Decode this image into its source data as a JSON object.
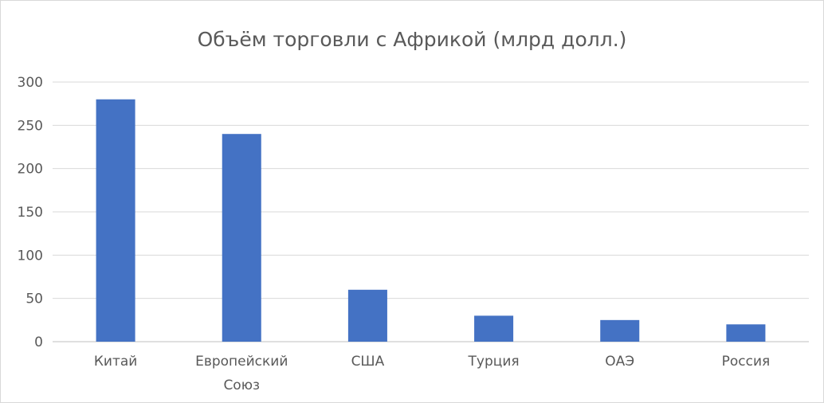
{
  "chart_data": {
    "type": "bar",
    "title": "Объём торговли с Африкой (млрд долл.)",
    "xlabel": "",
    "ylabel": "",
    "categories": [
      "Китай",
      "Европейский Союз",
      "США",
      "Турция",
      "ОАЭ",
      "Россия"
    ],
    "category_lines": [
      [
        "Китай"
      ],
      [
        "Европейский",
        "Союз"
      ],
      [
        "США"
      ],
      [
        "Турция"
      ],
      [
        "ОАЭ"
      ],
      [
        "Россия"
      ]
    ],
    "values": [
      280,
      240,
      60,
      30,
      25,
      20
    ],
    "ylim": [
      0,
      300
    ],
    "yticks": [
      0,
      50,
      100,
      150,
      200,
      250,
      300
    ],
    "grid": true,
    "legend": "none",
    "bar_color": "#4472c4"
  }
}
